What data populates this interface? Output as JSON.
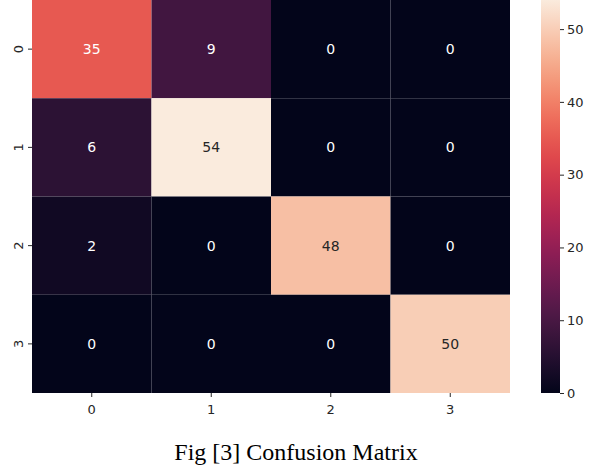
{
  "chart_data": {
    "type": "heatmap",
    "title": "Fig [3] Confusion Matrix",
    "x_categories": [
      "0",
      "1",
      "2",
      "3"
    ],
    "y_categories": [
      "0",
      "1",
      "2",
      "3"
    ],
    "cells": [
      [
        35,
        9,
        0,
        0
      ],
      [
        6,
        54,
        0,
        0
      ],
      [
        2,
        0,
        48,
        0
      ],
      [
        0,
        0,
        0,
        50
      ]
    ],
    "color_range": [
      0,
      54
    ],
    "color_ticks": [
      0,
      10,
      20,
      30,
      40,
      50
    ],
    "data_labels": true
  }
}
